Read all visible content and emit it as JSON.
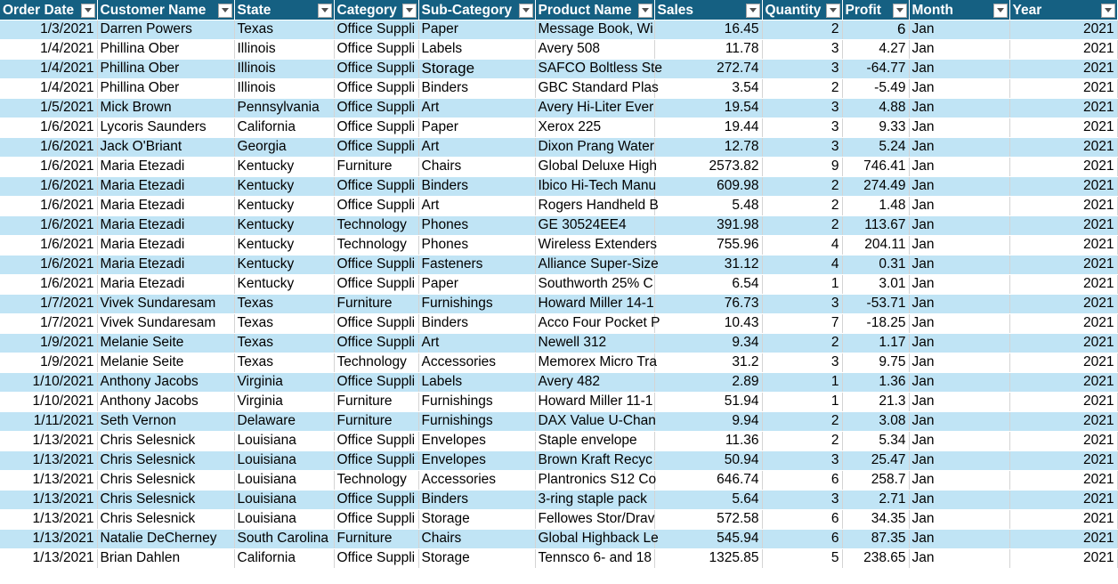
{
  "table": {
    "headers": [
      "Order Date",
      "Customer Name",
      "State",
      "Category",
      "Sub-Category",
      "Product Name",
      "Sales",
      "Quantity",
      "Profit",
      "Month",
      "Year"
    ],
    "rows": [
      [
        "1/3/2021",
        "Darren Powers",
        "Texas",
        "Office Suppli",
        "Paper",
        "Message Book, Wi",
        "16.45",
        "2",
        "6",
        "Jan",
        "2021"
      ],
      [
        "1/4/2021",
        "Phillina Ober",
        "Illinois",
        "Office Suppli",
        "Labels",
        "Avery 508",
        "11.78",
        "3",
        "4.27",
        "Jan",
        "2021"
      ],
      [
        "1/4/2021",
        "Phillina Ober",
        "Illinois",
        "Office Suppli",
        "Storage",
        "SAFCO Boltless Ste",
        "272.74",
        "3",
        "-64.77",
        "Jan",
        "2021"
      ],
      [
        "1/4/2021",
        "Phillina Ober",
        "Illinois",
        "Office Suppli",
        "Binders",
        "GBC Standard Plas",
        "3.54",
        "2",
        "-5.49",
        "Jan",
        "2021"
      ],
      [
        "1/5/2021",
        "Mick Brown",
        "Pennsylvania",
        "Office Suppli",
        "Art",
        "Avery Hi-Liter Ever",
        "19.54",
        "3",
        "4.88",
        "Jan",
        "2021"
      ],
      [
        "1/6/2021",
        "Lycoris Saunders",
        "California",
        "Office Suppli",
        "Paper",
        "Xerox 225",
        "19.44",
        "3",
        "9.33",
        "Jan",
        "2021"
      ],
      [
        "1/6/2021",
        "Jack O'Briant",
        "Georgia",
        "Office Suppli",
        "Art",
        "Dixon Prang Water",
        "12.78",
        "3",
        "5.24",
        "Jan",
        "2021"
      ],
      [
        "1/6/2021",
        "Maria Etezadi",
        "Kentucky",
        "Furniture",
        "Chairs",
        "Global Deluxe High",
        "2573.82",
        "9",
        "746.41",
        "Jan",
        "2021"
      ],
      [
        "1/6/2021",
        "Maria Etezadi",
        "Kentucky",
        "Office Suppli",
        "Binders",
        "Ibico Hi-Tech Manu",
        "609.98",
        "2",
        "274.49",
        "Jan",
        "2021"
      ],
      [
        "1/6/2021",
        "Maria Etezadi",
        "Kentucky",
        "Office Suppli",
        "Art",
        "Rogers Handheld B",
        "5.48",
        "2",
        "1.48",
        "Jan",
        "2021"
      ],
      [
        "1/6/2021",
        "Maria Etezadi",
        "Kentucky",
        "Technology",
        "Phones",
        "GE 30524EE4",
        "391.98",
        "2",
        "113.67",
        "Jan",
        "2021"
      ],
      [
        "1/6/2021",
        "Maria Etezadi",
        "Kentucky",
        "Technology",
        "Phones",
        "Wireless Extenders",
        "755.96",
        "4",
        "204.11",
        "Jan",
        "2021"
      ],
      [
        "1/6/2021",
        "Maria Etezadi",
        "Kentucky",
        "Office Suppli",
        "Fasteners",
        "Alliance Super-Size",
        "31.12",
        "4",
        "0.31",
        "Jan",
        "2021"
      ],
      [
        "1/6/2021",
        "Maria Etezadi",
        "Kentucky",
        "Office Suppli",
        "Paper",
        "Southworth 25% C",
        "6.54",
        "1",
        "3.01",
        "Jan",
        "2021"
      ],
      [
        "1/7/2021",
        "Vivek Sundaresam",
        "Texas",
        "Furniture",
        "Furnishings",
        "Howard Miller 14-1",
        "76.73",
        "3",
        "-53.71",
        "Jan",
        "2021"
      ],
      [
        "1/7/2021",
        "Vivek Sundaresam",
        "Texas",
        "Office Suppli",
        "Binders",
        "Acco Four Pocket P",
        "10.43",
        "7",
        "-18.25",
        "Jan",
        "2021"
      ],
      [
        "1/9/2021",
        "Melanie Seite",
        "Texas",
        "Office Suppli",
        "Art",
        "Newell 312",
        "9.34",
        "2",
        "1.17",
        "Jan",
        "2021"
      ],
      [
        "1/9/2021",
        "Melanie Seite",
        "Texas",
        "Technology",
        "Accessories",
        "Memorex Micro Tra",
        "31.2",
        "3",
        "9.75",
        "Jan",
        "2021"
      ],
      [
        "1/10/2021",
        "Anthony Jacobs",
        "Virginia",
        "Office Suppli",
        "Labels",
        "Avery 482",
        "2.89",
        "1",
        "1.36",
        "Jan",
        "2021"
      ],
      [
        "1/10/2021",
        "Anthony Jacobs",
        "Virginia",
        "Furniture",
        "Furnishings",
        "Howard Miller 11-1",
        "51.94",
        "1",
        "21.3",
        "Jan",
        "2021"
      ],
      [
        "1/11/2021",
        "Seth Vernon",
        "Delaware",
        "Furniture",
        "Furnishings",
        "DAX Value U-Chan",
        "9.94",
        "2",
        "3.08",
        "Jan",
        "2021"
      ],
      [
        "1/13/2021",
        "Chris Selesnick",
        "Louisiana",
        "Office Suppli",
        "Envelopes",
        "Staple envelope",
        "11.36",
        "2",
        "5.34",
        "Jan",
        "2021"
      ],
      [
        "1/13/2021",
        "Chris Selesnick",
        "Louisiana",
        "Office Suppli",
        "Envelopes",
        "Brown Kraft Recyc",
        "50.94",
        "3",
        "25.47",
        "Jan",
        "2021"
      ],
      [
        "1/13/2021",
        "Chris Selesnick",
        "Louisiana",
        "Technology",
        "Accessories",
        "Plantronics S12 Co",
        "646.74",
        "6",
        "258.7",
        "Jan",
        "2021"
      ],
      [
        "1/13/2021",
        "Chris Selesnick",
        "Louisiana",
        "Office Suppli",
        "Binders",
        "3-ring staple pack",
        "5.64",
        "3",
        "2.71",
        "Jan",
        "2021"
      ],
      [
        "1/13/2021",
        "Chris Selesnick",
        "Louisiana",
        "Office Suppli",
        "Storage",
        "Fellowes Stor/Drav",
        "572.58",
        "6",
        "34.35",
        "Jan",
        "2021"
      ],
      [
        "1/13/2021",
        "Natalie DeCherney",
        "South Carolina",
        "Furniture",
        "Chairs",
        "Global Highback Le",
        "545.94",
        "6",
        "87.35",
        "Jan",
        "2021"
      ],
      [
        "1/13/2021",
        "Brian Dahlen",
        "California",
        "Office Suppli",
        "Storage",
        "Tennsco 6- and 18",
        "1325.85",
        "5",
        "238.65",
        "Jan",
        "2021"
      ]
    ]
  },
  "colors": {
    "header_bg": "#156082",
    "band_bg": "#c0e4f5",
    "plain_bg": "#ffffff"
  },
  "icons": {
    "filter": "filter-dropdown-icon"
  }
}
